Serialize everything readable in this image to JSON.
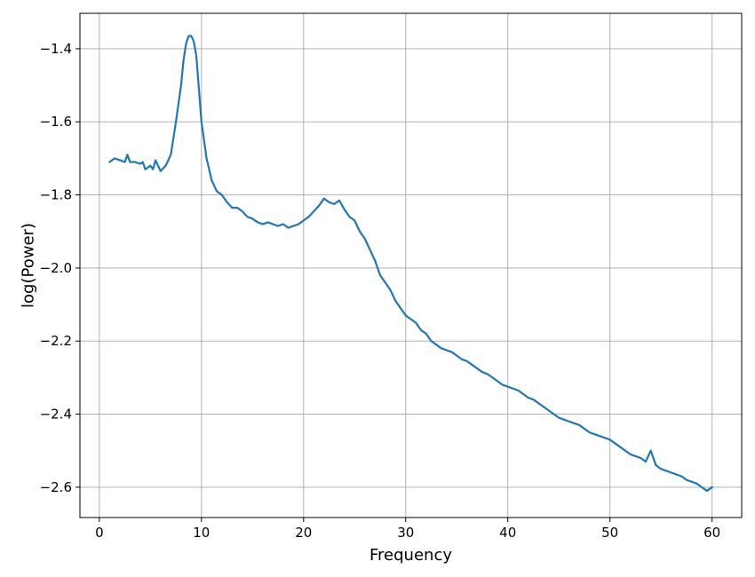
{
  "chart_data": {
    "type": "line",
    "title": "",
    "xlabel": "Frequency",
    "ylabel": "log(Power)",
    "xlim": [
      -1.9,
      62.9
    ],
    "ylim": [
      -2.683,
      -1.303
    ],
    "xticks": [
      0,
      10,
      20,
      30,
      40,
      50,
      60
    ],
    "xtick_labels": [
      "0",
      "10",
      "20",
      "30",
      "40",
      "50",
      "60"
    ],
    "yticks": [
      -1.4,
      -1.6,
      -1.8,
      -2.0,
      -2.2,
      -2.4,
      -2.6
    ],
    "ytick_labels": [
      "−1.4",
      "−1.6",
      "−1.8",
      "−2.0",
      "−2.2",
      "−2.4",
      "−2.6"
    ],
    "grid": true,
    "line_color": "#1f77b4",
    "series": [
      {
        "x": [
          1.0,
          1.5,
          2.0,
          2.5,
          2.75,
          3.0,
          3.5,
          4.0,
          4.25,
          4.5,
          5.0,
          5.25,
          5.5,
          6.0,
          6.5,
          7.0,
          7.5,
          8.0,
          8.25,
          8.5,
          8.75,
          9.0,
          9.25,
          9.5,
          10.0,
          10.5,
          11.0,
          11.5,
          12.0,
          12.5,
          13.0,
          13.5,
          14.0,
          14.5,
          15.0,
          15.5,
          16.0,
          16.5,
          17.0,
          17.5,
          18.0,
          18.5,
          19.0,
          19.5,
          20.0,
          20.5,
          21.0,
          21.5,
          22.0,
          22.5,
          23.0,
          23.5,
          24.0,
          24.5,
          25.0,
          25.5,
          26.0,
          26.5,
          27.0,
          27.5,
          28.0,
          28.5,
          29.0,
          29.5,
          30.0,
          30.5,
          31.0,
          31.5,
          32.0,
          32.5,
          33.0,
          33.5,
          34.0,
          34.5,
          35.0,
          35.5,
          36.0,
          36.5,
          37.0,
          37.5,
          38.0,
          38.5,
          39.0,
          39.5,
          40.0,
          40.5,
          41.0,
          41.5,
          42.0,
          42.5,
          43.0,
          43.5,
          44.0,
          44.5,
          45.0,
          45.5,
          46.0,
          46.5,
          47.0,
          47.5,
          48.0,
          48.5,
          49.0,
          49.5,
          50.0,
          50.5,
          51.0,
          51.5,
          52.0,
          52.5,
          53.0,
          53.5,
          54.0,
          54.5,
          55.0,
          55.5,
          56.0,
          56.5,
          57.0,
          57.5,
          58.0,
          58.5,
          59.0,
          59.5,
          60.0
        ],
        "y": [
          -1.71,
          -1.7,
          -1.705,
          -1.71,
          -1.69,
          -1.71,
          -1.71,
          -1.715,
          -1.71,
          -1.73,
          -1.72,
          -1.73,
          -1.705,
          -1.735,
          -1.72,
          -1.69,
          -1.6,
          -1.5,
          -1.43,
          -1.385,
          -1.365,
          -1.365,
          -1.38,
          -1.42,
          -1.6,
          -1.7,
          -1.76,
          -1.79,
          -1.8,
          -1.82,
          -1.835,
          -1.835,
          -1.845,
          -1.86,
          -1.865,
          -1.875,
          -1.88,
          -1.875,
          -1.88,
          -1.885,
          -1.88,
          -1.89,
          -1.885,
          -1.88,
          -1.87,
          -1.86,
          -1.845,
          -1.83,
          -1.81,
          -1.82,
          -1.825,
          -1.815,
          -1.84,
          -1.86,
          -1.87,
          -1.9,
          -1.92,
          -1.95,
          -1.98,
          -2.02,
          -2.04,
          -2.06,
          -2.09,
          -2.11,
          -2.13,
          -2.14,
          -2.15,
          -2.17,
          -2.18,
          -2.2,
          -2.21,
          -2.22,
          -2.225,
          -2.23,
          -2.24,
          -2.25,
          -2.255,
          -2.265,
          -2.275,
          -2.285,
          -2.29,
          -2.3,
          -2.31,
          -2.32,
          -2.325,
          -2.33,
          -2.335,
          -2.345,
          -2.355,
          -2.36,
          -2.37,
          -2.38,
          -2.39,
          -2.4,
          -2.41,
          -2.415,
          -2.42,
          -2.425,
          -2.43,
          -2.44,
          -2.45,
          -2.455,
          -2.46,
          -2.465,
          -2.47,
          -2.48,
          -2.49,
          -2.5,
          -2.51,
          -2.515,
          -2.52,
          -2.53,
          -2.5,
          -2.54,
          -2.55,
          -2.555,
          -2.56,
          -2.565,
          -2.57,
          -2.58,
          -2.585,
          -2.59,
          -2.6,
          -2.61,
          -2.6
        ]
      }
    ]
  }
}
